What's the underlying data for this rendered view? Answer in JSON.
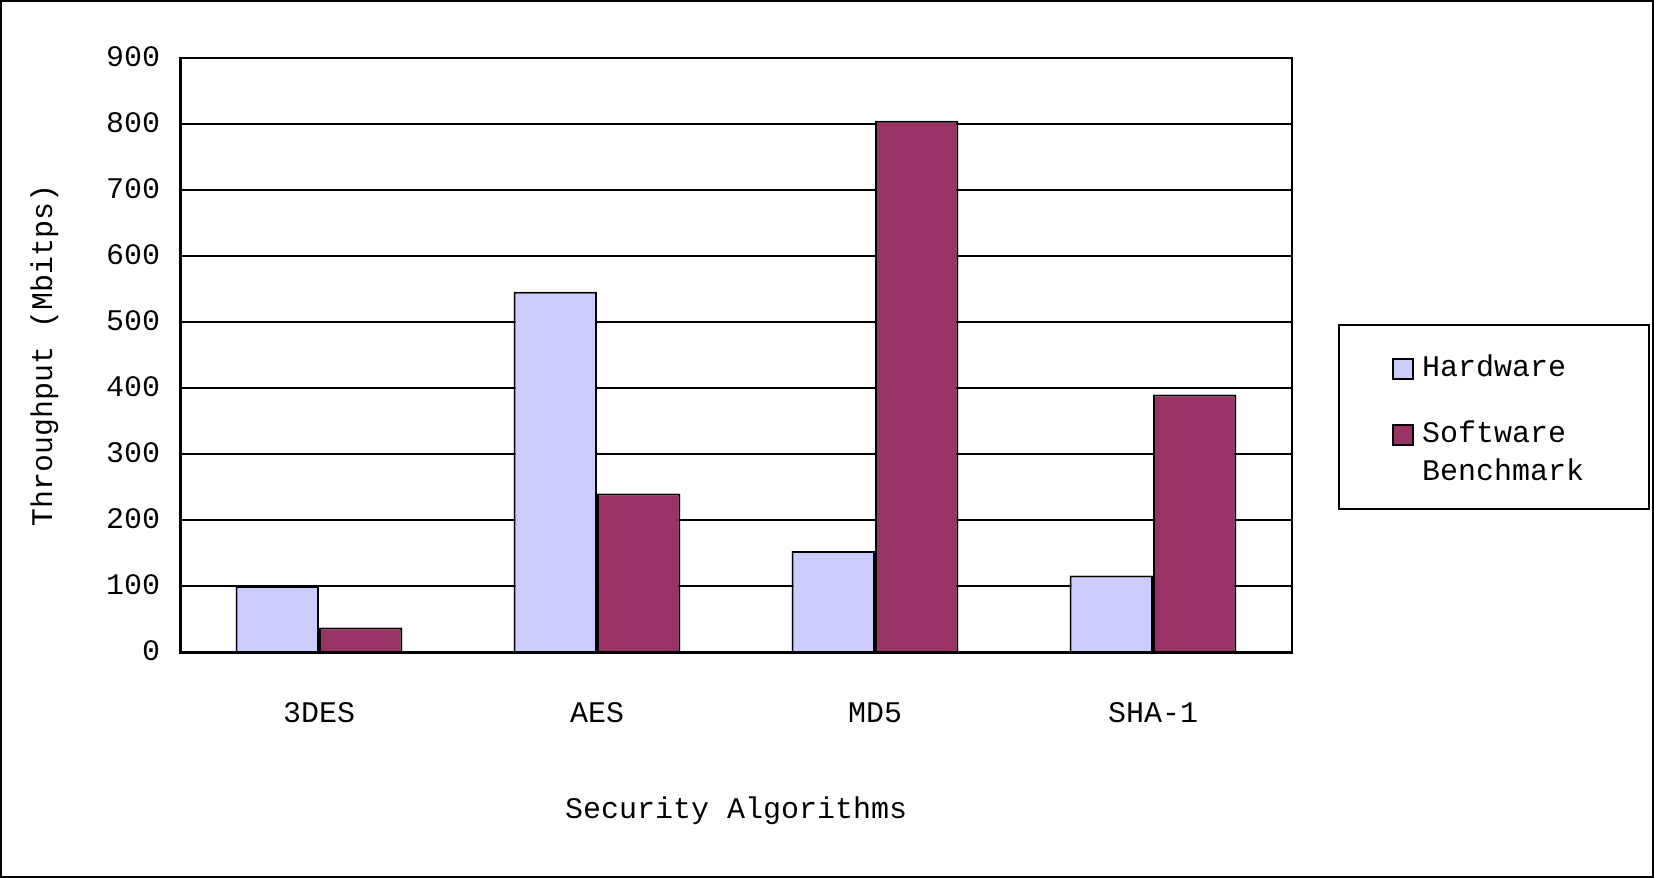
{
  "chart_data": {
    "type": "bar",
    "xlabel": "Security Algorithms",
    "ylabel": "Throughput (Mbitps)",
    "categories": [
      "3DES",
      "AES",
      "MD5",
      "SHA-1"
    ],
    "series": [
      {
        "name": "Hardware",
        "color": "#ccccff",
        "values": [
          100,
          546,
          153,
          116
        ]
      },
      {
        "name": "Software Benchmark",
        "color": "#993366",
        "values": [
          37,
          240,
          805,
          390
        ]
      }
    ],
    "ylim": [
      0,
      900
    ],
    "yticks": [
      0,
      100,
      200,
      300,
      400,
      500,
      600,
      700,
      800,
      900
    ],
    "grid": "y",
    "legend": "right"
  }
}
